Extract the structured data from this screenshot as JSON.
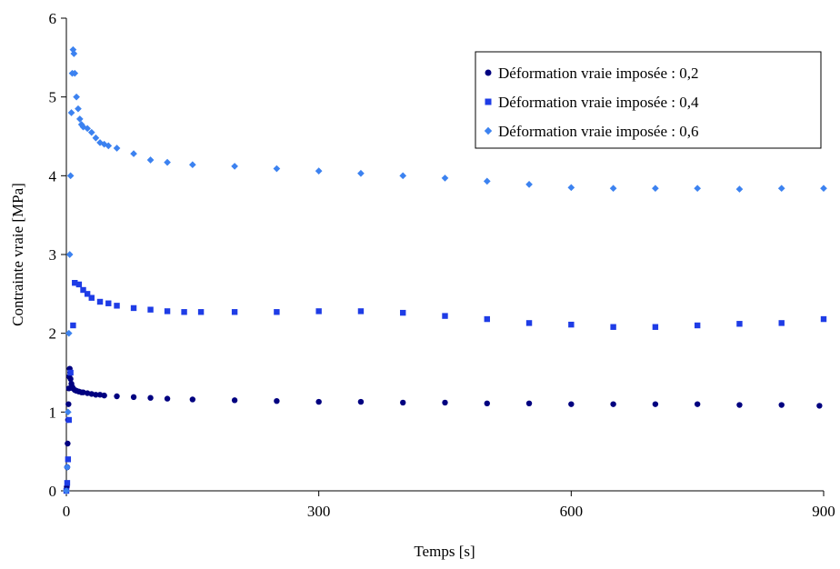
{
  "chart_data": {
    "type": "scatter",
    "xlabel": "Temps [s]",
    "ylabel": "Contrainte vraie [MPa]",
    "xlim": [
      0,
      900
    ],
    "ylim": [
      0,
      6
    ],
    "xticks": [
      0,
      300,
      600,
      900
    ],
    "yticks": [
      0,
      1,
      2,
      3,
      4,
      5,
      6
    ],
    "grid": false,
    "legend_position": "top-right",
    "series": [
      {
        "name": "Déformation vraie imposée : 0,2",
        "marker": "circle",
        "color": "#000080",
        "x": [
          0,
          0.5,
          1,
          1.5,
          2,
          2.5,
          3,
          3.5,
          4,
          4.5,
          5,
          6,
          7,
          8,
          10,
          12,
          15,
          18,
          20,
          25,
          30,
          35,
          40,
          45,
          60,
          80,
          100,
          120,
          150,
          200,
          250,
          300,
          350,
          400,
          450,
          500,
          550,
          600,
          650,
          700,
          750,
          800,
          850,
          895
        ],
        "y": [
          0,
          0.05,
          0.3,
          0.6,
          0.9,
          1.1,
          1.3,
          1.45,
          1.55,
          1.5,
          1.42,
          1.36,
          1.32,
          1.3,
          1.28,
          1.27,
          1.26,
          1.25,
          1.25,
          1.24,
          1.23,
          1.22,
          1.22,
          1.21,
          1.2,
          1.19,
          1.18,
          1.17,
          1.16,
          1.15,
          1.14,
          1.13,
          1.13,
          1.12,
          1.12,
          1.11,
          1.11,
          1.1,
          1.1,
          1.1,
          1.1,
          1.09,
          1.09,
          1.08
        ]
      },
      {
        "name": "Déformation vraie imposée : 0,4",
        "marker": "square",
        "color": "#1e3ce6",
        "x": [
          0,
          1,
          2,
          3,
          5,
          8,
          10,
          15,
          20,
          25,
          30,
          40,
          50,
          60,
          80,
          100,
          120,
          140,
          160,
          200,
          250,
          300,
          350,
          400,
          450,
          500,
          550,
          600,
          650,
          700,
          750,
          800,
          850,
          900
        ],
        "y": [
          0,
          0.1,
          0.4,
          0.9,
          1.5,
          2.1,
          2.64,
          2.62,
          2.55,
          2.5,
          2.45,
          2.4,
          2.38,
          2.35,
          2.32,
          2.3,
          2.28,
          2.27,
          2.27,
          2.27,
          2.27,
          2.28,
          2.28,
          2.26,
          2.22,
          2.18,
          2.13,
          2.11,
          2.08,
          2.08,
          2.1,
          2.12,
          2.13,
          2.18
        ]
      },
      {
        "name": "Déformation vraie imposée : 0,6",
        "marker": "diamond",
        "color": "#3c82f0",
        "x": [
          0,
          1,
          2,
          3,
          4,
          5,
          6,
          7,
          8,
          9,
          10,
          12,
          14,
          16,
          18,
          20,
          25,
          30,
          35,
          40,
          45,
          50,
          60,
          80,
          100,
          120,
          150,
          200,
          250,
          300,
          350,
          400,
          450,
          500,
          550,
          600,
          650,
          700,
          750,
          800,
          850,
          900
        ],
        "y": [
          0,
          0.3,
          1.0,
          2.0,
          3.0,
          4.0,
          4.8,
          5.3,
          5.6,
          5.55,
          5.3,
          5.0,
          4.85,
          4.72,
          4.65,
          4.62,
          4.6,
          4.55,
          4.48,
          4.42,
          4.4,
          4.38,
          4.35,
          4.28,
          4.2,
          4.17,
          4.14,
          4.12,
          4.09,
          4.06,
          4.03,
          4.0,
          3.97,
          3.93,
          3.89,
          3.85,
          3.84,
          3.84,
          3.84,
          3.83,
          3.84,
          3.84
        ]
      }
    ]
  }
}
